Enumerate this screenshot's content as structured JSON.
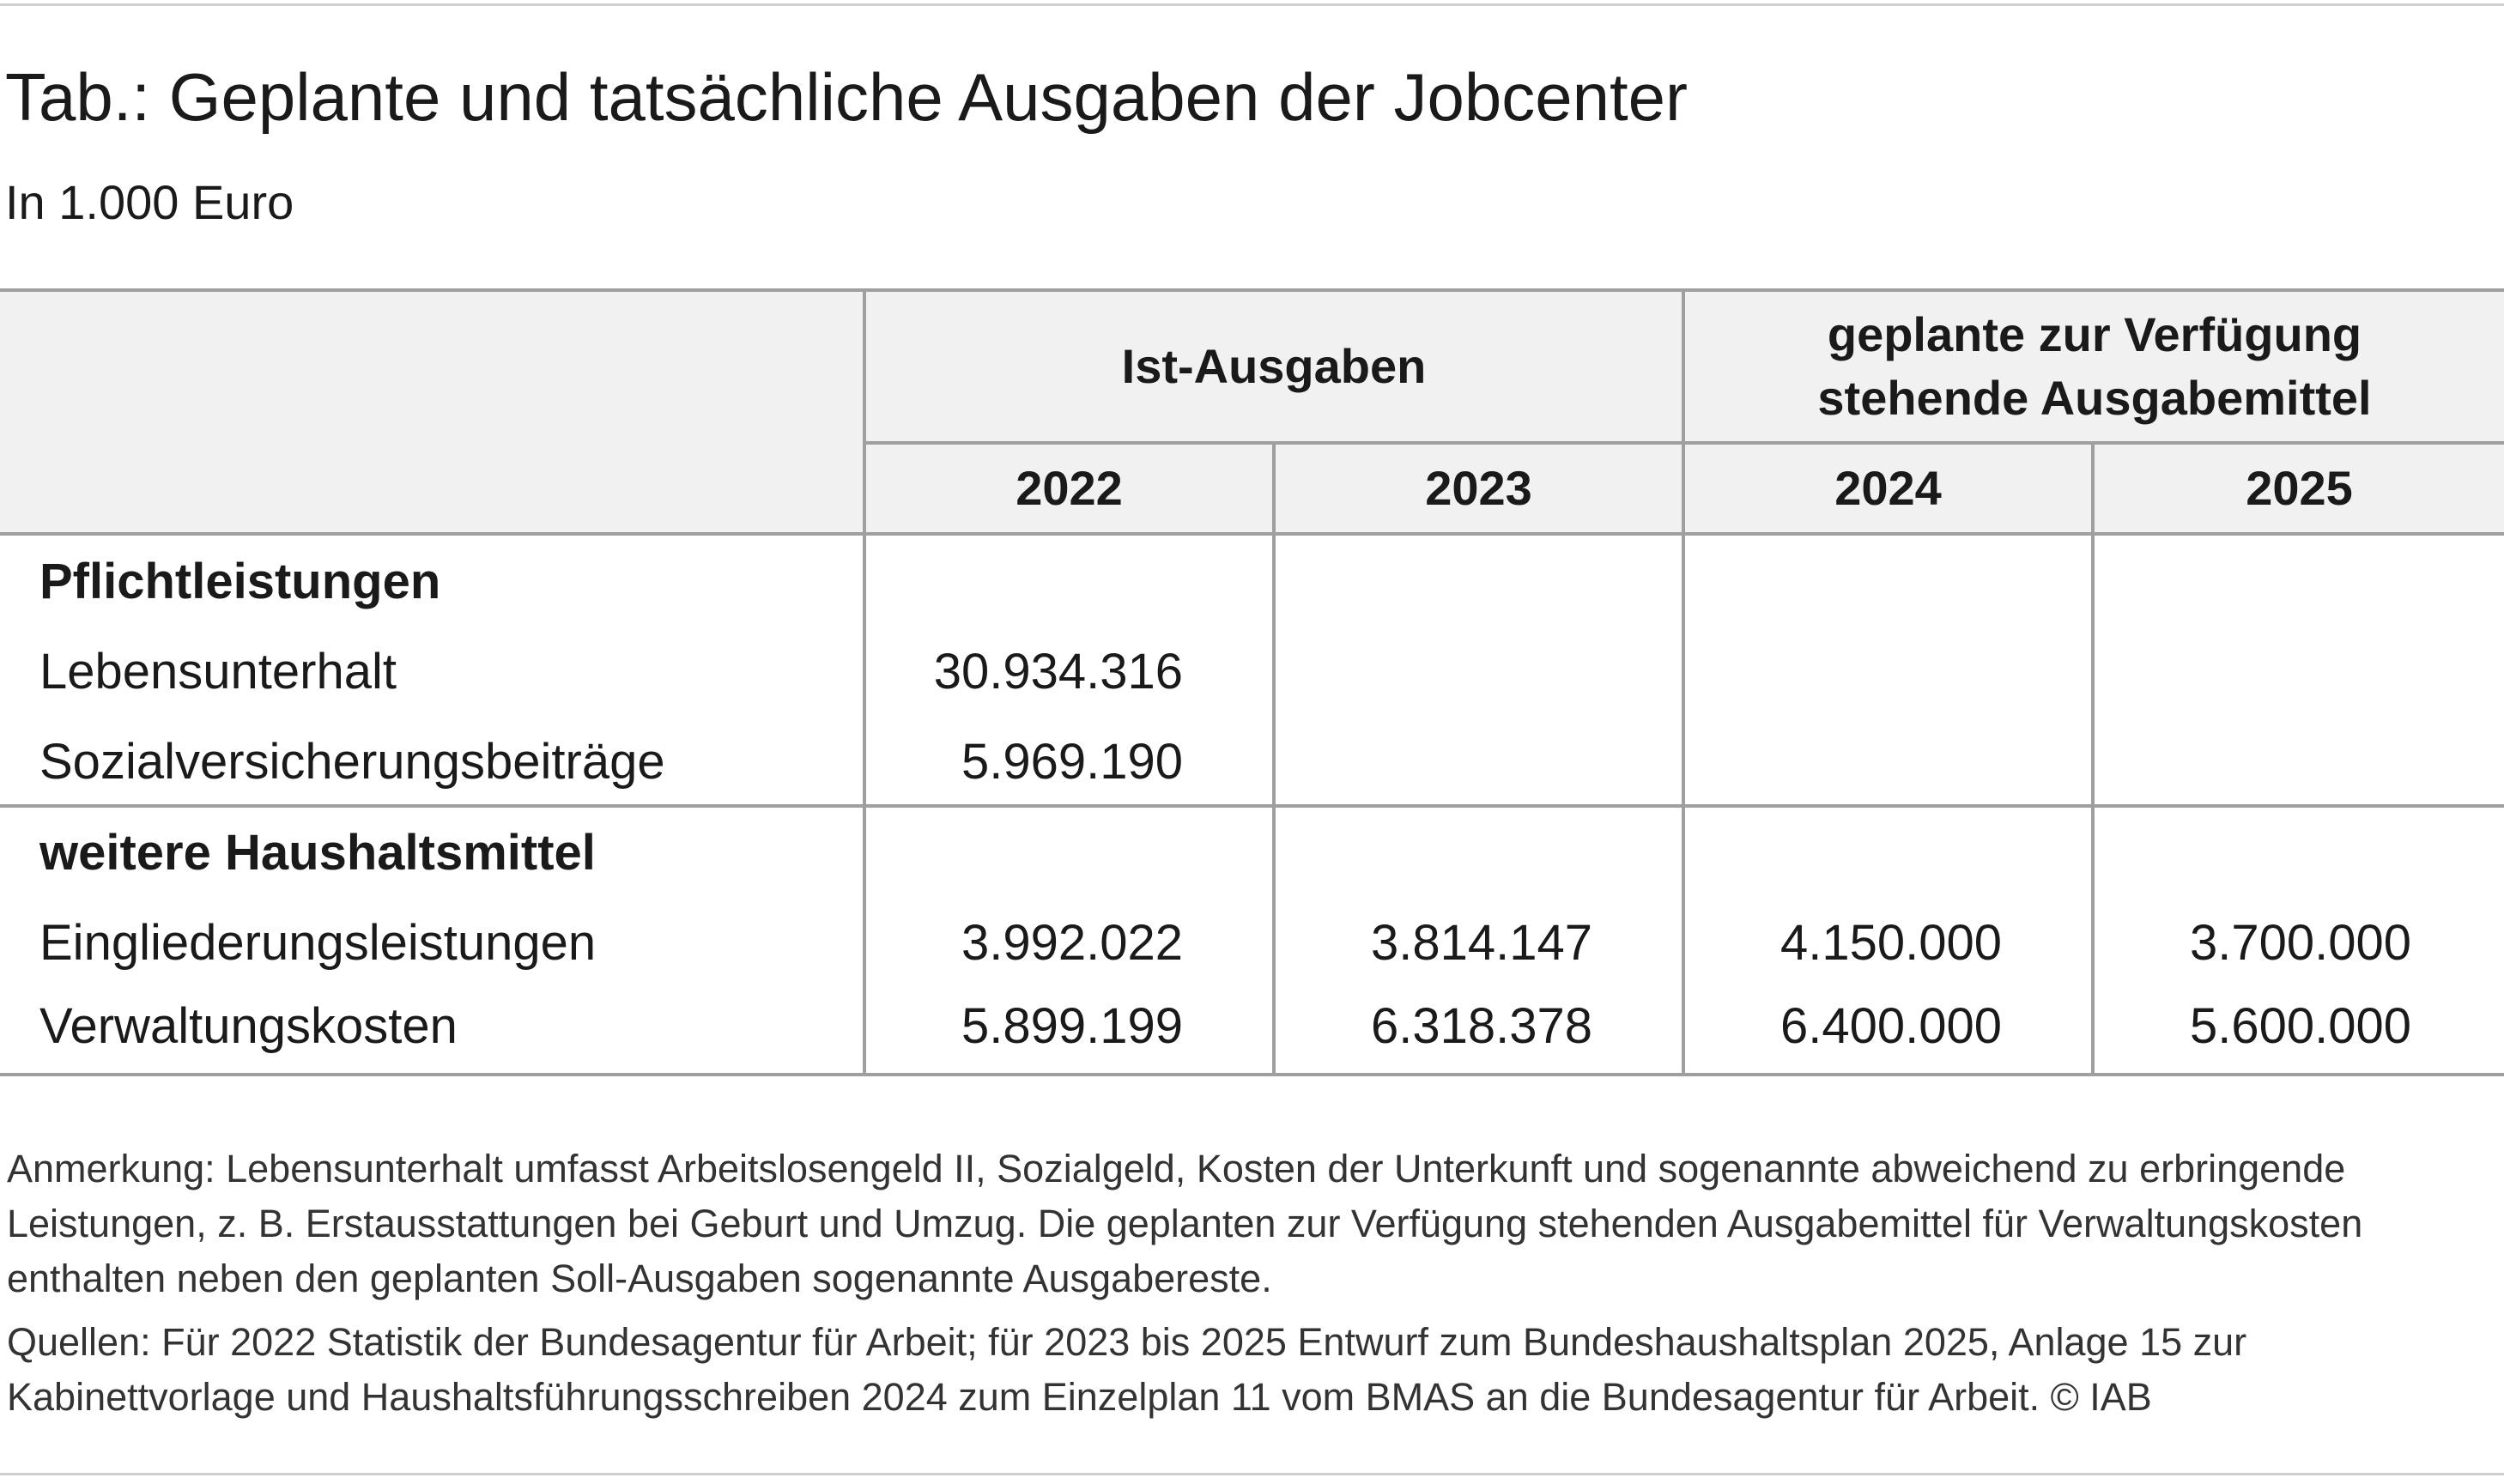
{
  "title": "Tab.: Geplante und tatsächliche Ausgaben der Jobcenter",
  "subtitle": "In 1.000 Euro",
  "header": {
    "group_actual": "Ist-Ausgaben",
    "group_planned": "geplante zur Verfügung stehende Ausgabemittel",
    "years": [
      "2022",
      "2023",
      "2024",
      "2025"
    ]
  },
  "sections": [
    {
      "heading": "Pflichtleistungen",
      "rows": [
        {
          "label": "Lebensunterhalt",
          "values": [
            "30.934.316",
            "",
            "",
            ""
          ]
        },
        {
          "label": "Sozialversicherungsbeiträge",
          "values": [
            "5.969.190",
            "",
            "",
            ""
          ]
        }
      ]
    },
    {
      "heading": "weitere Haushaltsmittel",
      "rows": [
        {
          "label": "Eingliederungsleistungen",
          "values": [
            "3.992.022",
            "3.814.147",
            "4.150.000",
            "3.700.000"
          ]
        },
        {
          "label": "Verwaltungskosten",
          "values": [
            "5.899.199",
            "6.318.378",
            "6.400.000",
            "5.600.000"
          ]
        }
      ]
    }
  ],
  "notes": {
    "remark": "Anmerkung: Lebensunterhalt umfasst Arbeitslosengeld II, Sozialgeld, Kosten der Unterkunft und sogenannte abweichend zu erbringende Leistungen, z. B. Erstausstattungen bei Geburt und Umzug. Die geplanten zur Verfügung stehenden Ausgabemittel für Verwaltungskosten enthalten neben den geplanten Soll-Ausgaben sogenannte Ausgabereste.",
    "sources": "Quellen: Für 2022 Statistik der Bundesagentur für Arbeit; für 2023 bis 2025 Entwurf zum Bundeshaushaltsplan 2025, Anlage 15 zur Kabinettvorlage und Haushaltsführungsschreiben 2024 zum Einzelplan 11 vom BMAS an die Bundesagentur für Arbeit.  © IAB"
  }
}
